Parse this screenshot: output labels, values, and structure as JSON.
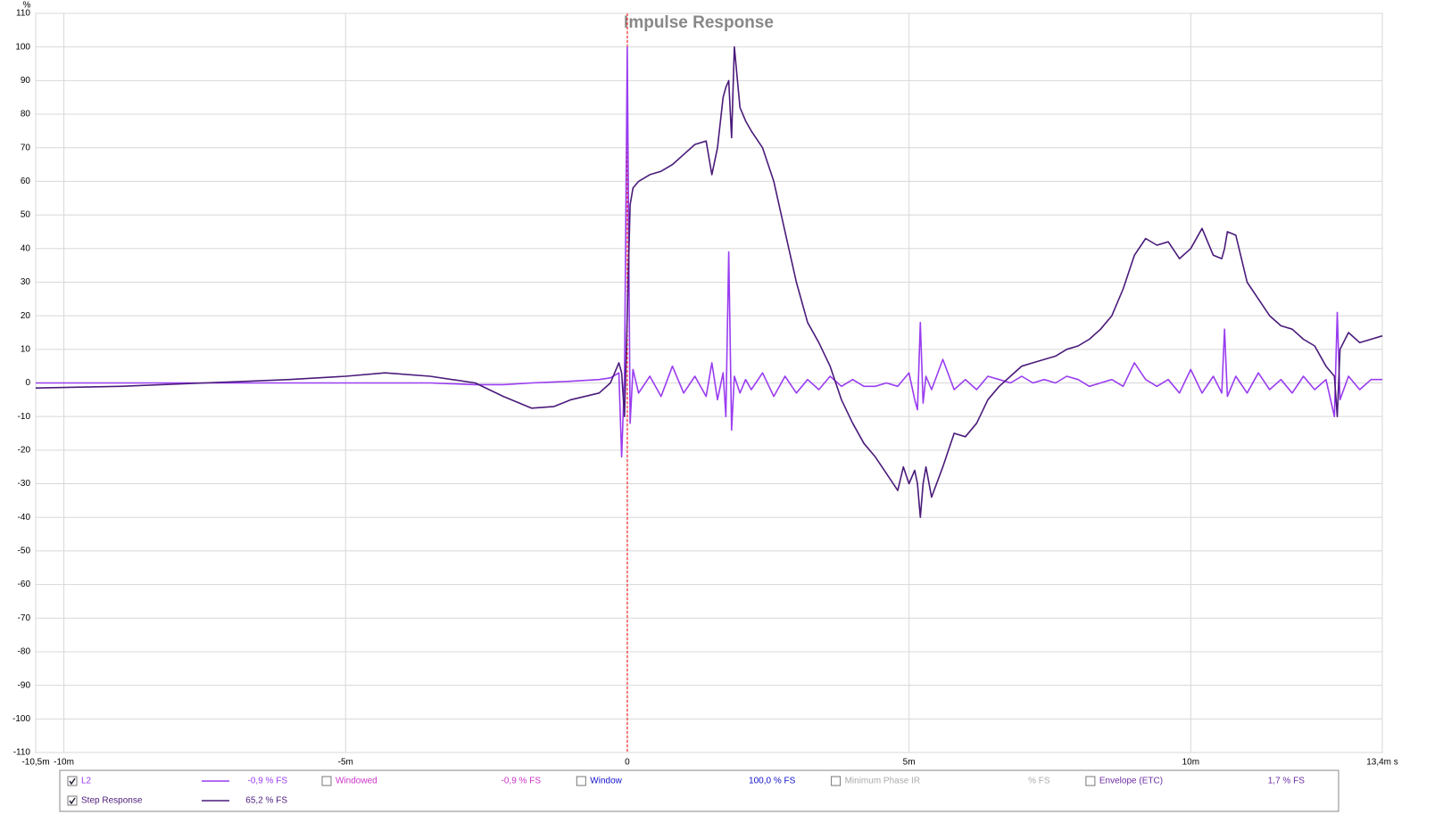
{
  "chart_data": {
    "type": "line",
    "title": "Impulse Response",
    "ylabel": "%",
    "xlim": [
      -10.5,
      13.4
    ],
    "ylim": [
      -110,
      110
    ],
    "xticks": [
      {
        "value": -10.5,
        "label": "-10,5m"
      },
      {
        "value": -10,
        "label": "-10m"
      },
      {
        "value": -5,
        "label": "-5m"
      },
      0,
      {
        "value": 5,
        "label": "5m"
      },
      {
        "value": 10,
        "label": "10m"
      },
      {
        "value": 13.4,
        "label": "13,4m s"
      }
    ],
    "yticks": [
      110,
      100,
      90,
      80,
      70,
      60,
      50,
      40,
      30,
      20,
      10,
      0,
      -10,
      -20,
      -30,
      -40,
      -50,
      -60,
      -70,
      -80,
      -90,
      -100,
      -110
    ],
    "grid": true,
    "marker_line": {
      "x": 0,
      "color": "#ff0000"
    },
    "x": [
      -10.5,
      -9,
      -7.5,
      -6,
      -5,
      -4.3,
      -3.5,
      -2.7,
      -2.2,
      -1.7,
      -1.3,
      -1,
      -0.5,
      -0.3,
      -0.15,
      -0.1,
      -0.05,
      0,
      0.05,
      0.1,
      0.2,
      0.4,
      0.6,
      0.8,
      1.0,
      1.2,
      1.4,
      1.5,
      1.6,
      1.7,
      1.75,
      1.8,
      1.85,
      1.9,
      2.0,
      2.1,
      2.2,
      2.4,
      2.6,
      2.8,
      3.0,
      3.2,
      3.4,
      3.6,
      3.8,
      4.0,
      4.2,
      4.4,
      4.6,
      4.8,
      4.9,
      5.0,
      5.1,
      5.15,
      5.2,
      5.25,
      5.3,
      5.4,
      5.6,
      5.8,
      6.0,
      6.2,
      6.4,
      6.6,
      6.8,
      7.0,
      7.2,
      7.4,
      7.6,
      7.8,
      8.0,
      8.2,
      8.4,
      8.6,
      8.8,
      9.0,
      9.2,
      9.4,
      9.6,
      9.8,
      10.0,
      10.2,
      10.4,
      10.55,
      10.6,
      10.65,
      10.8,
      11.0,
      11.2,
      11.4,
      11.6,
      11.8,
      12.0,
      12.2,
      12.4,
      12.55,
      12.6,
      12.65,
      12.8,
      13.0,
      13.2,
      13.4
    ],
    "series": [
      {
        "name": "L2",
        "color": "#9a3cf0",
        "readout": "-0,9 % FS",
        "checked": true,
        "values": [
          0,
          0,
          0,
          0,
          0,
          0,
          0,
          -0.5,
          -0.5,
          0,
          0.3,
          0.5,
          1,
          1.5,
          3,
          -22,
          2,
          100,
          -12,
          4,
          -3,
          2,
          -4,
          5,
          -3,
          2,
          -4,
          6,
          -5,
          3,
          -10,
          39,
          -14,
          2,
          -3,
          1,
          -2,
          3,
          -4,
          2,
          -3,
          1,
          -2,
          2,
          -1,
          1,
          -1,
          -1,
          0,
          -1,
          1,
          3,
          -5,
          -8,
          18,
          -6,
          2,
          -2,
          7,
          -2,
          1,
          -2,
          2,
          1,
          0,
          2,
          0,
          1,
          0,
          2,
          1,
          -1,
          0,
          1,
          -1,
          6,
          1,
          -1,
          1,
          -3,
          4,
          -3,
          2,
          -3,
          16,
          -4,
          2,
          -3,
          3,
          -2,
          1,
          -3,
          2,
          -2,
          1,
          -10,
          21,
          -5,
          2,
          -2,
          1,
          1
        ]
      },
      {
        "name": "Step Response",
        "color": "#4a1a7a",
        "readout": "65,2 % FS",
        "checked": true,
        "values": [
          -1.5,
          -1,
          0,
          1,
          2,
          3,
          2,
          0,
          -4,
          -7.5,
          -7,
          -5,
          -3,
          0,
          6,
          3,
          -10,
          20,
          53,
          58,
          60,
          62,
          63,
          65,
          68,
          71,
          72,
          62,
          70,
          85,
          88,
          90,
          73,
          100,
          82,
          78,
          75,
          70,
          60,
          45,
          30,
          18,
          12,
          5,
          -5,
          -12,
          -18,
          -22,
          -27,
          -32,
          -25,
          -30,
          -26,
          -30,
          -40,
          -30,
          -25,
          -34,
          -25,
          -15,
          -16,
          -12,
          -5,
          -1,
          2,
          5,
          6,
          7,
          8,
          10,
          11,
          13,
          16,
          20,
          28,
          38,
          43,
          41,
          42,
          37,
          40,
          46,
          38,
          37,
          40,
          45,
          44,
          30,
          25,
          20,
          17,
          16,
          13,
          11,
          5,
          2,
          -10,
          10,
          15,
          12,
          13,
          14
        ]
      }
    ],
    "legend_extra": [
      {
        "name": "Windowed",
        "readout": "-0,9 % FS",
        "color": "#cc33cc",
        "checked": false
      },
      {
        "name": "Window",
        "readout": "100,0 % FS",
        "color": "#1010cc",
        "checked": false
      },
      {
        "name": "Minimum Phase IR",
        "readout": "% FS",
        "color": "#aaaaaa",
        "checked": false
      },
      {
        "name": "Envelope (ETC)",
        "readout": "1,7 % FS",
        "color": "#6a2aa0",
        "checked": false
      }
    ]
  }
}
